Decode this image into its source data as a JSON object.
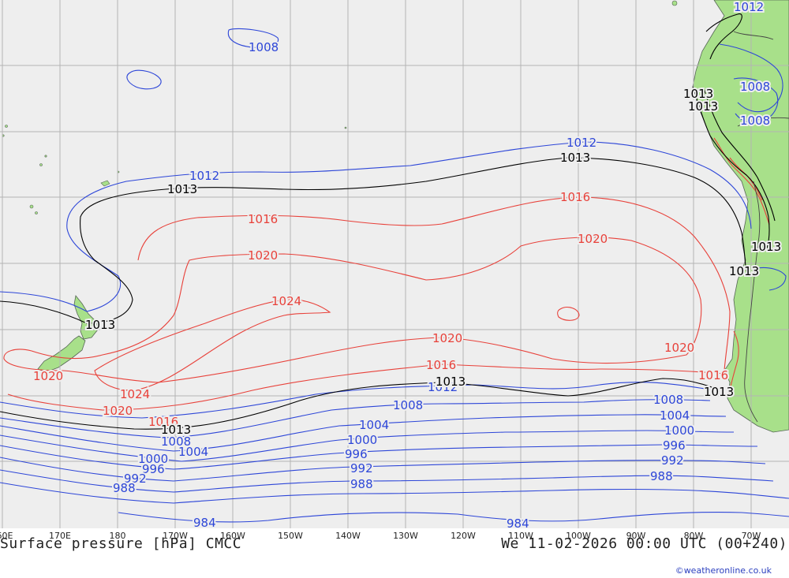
{
  "map": {
    "title": "Surface pressure [hPa] CMCC",
    "valid_time": "We 11-02-2026 00:00 UTC (00+240)",
    "credit": "©weatheronline.co.uk",
    "colors": {
      "ocean": "#eeeeee",
      "land": "#a8e08a",
      "grid": "#b4b4b4",
      "low": "#2d46d8",
      "high": "#e8413a",
      "reference": "#000000",
      "border": "#444444"
    },
    "lon_labels": [
      "60E",
      "170E",
      "180",
      "170W",
      "160W",
      "150W",
      "140W",
      "130W",
      "120W",
      "110W",
      "100W",
      "90W",
      "80W",
      "70W"
    ],
    "isobar_labels": {
      "blue": [
        "1008",
        "1012",
        "1012",
        "1012",
        "1008",
        "1008",
        "1008",
        "1008",
        "1004",
        "1004",
        "1004",
        "1000",
        "1000",
        "1000",
        "996",
        "996",
        "996",
        "992",
        "992",
        "992",
        "988",
        "988",
        "988",
        "984",
        "984",
        "1008",
        "1012"
      ],
      "red": [
        "1016",
        "1016",
        "1020",
        "1020",
        "1024",
        "1020",
        "1024",
        "1020",
        "1016",
        "1016",
        "1020",
        "1020",
        "1016"
      ],
      "black": [
        "1013",
        "1013",
        "1013",
        "1013",
        "1013",
        "1013",
        "1013",
        "1013",
        "1013",
        "1013"
      ]
    }
  }
}
